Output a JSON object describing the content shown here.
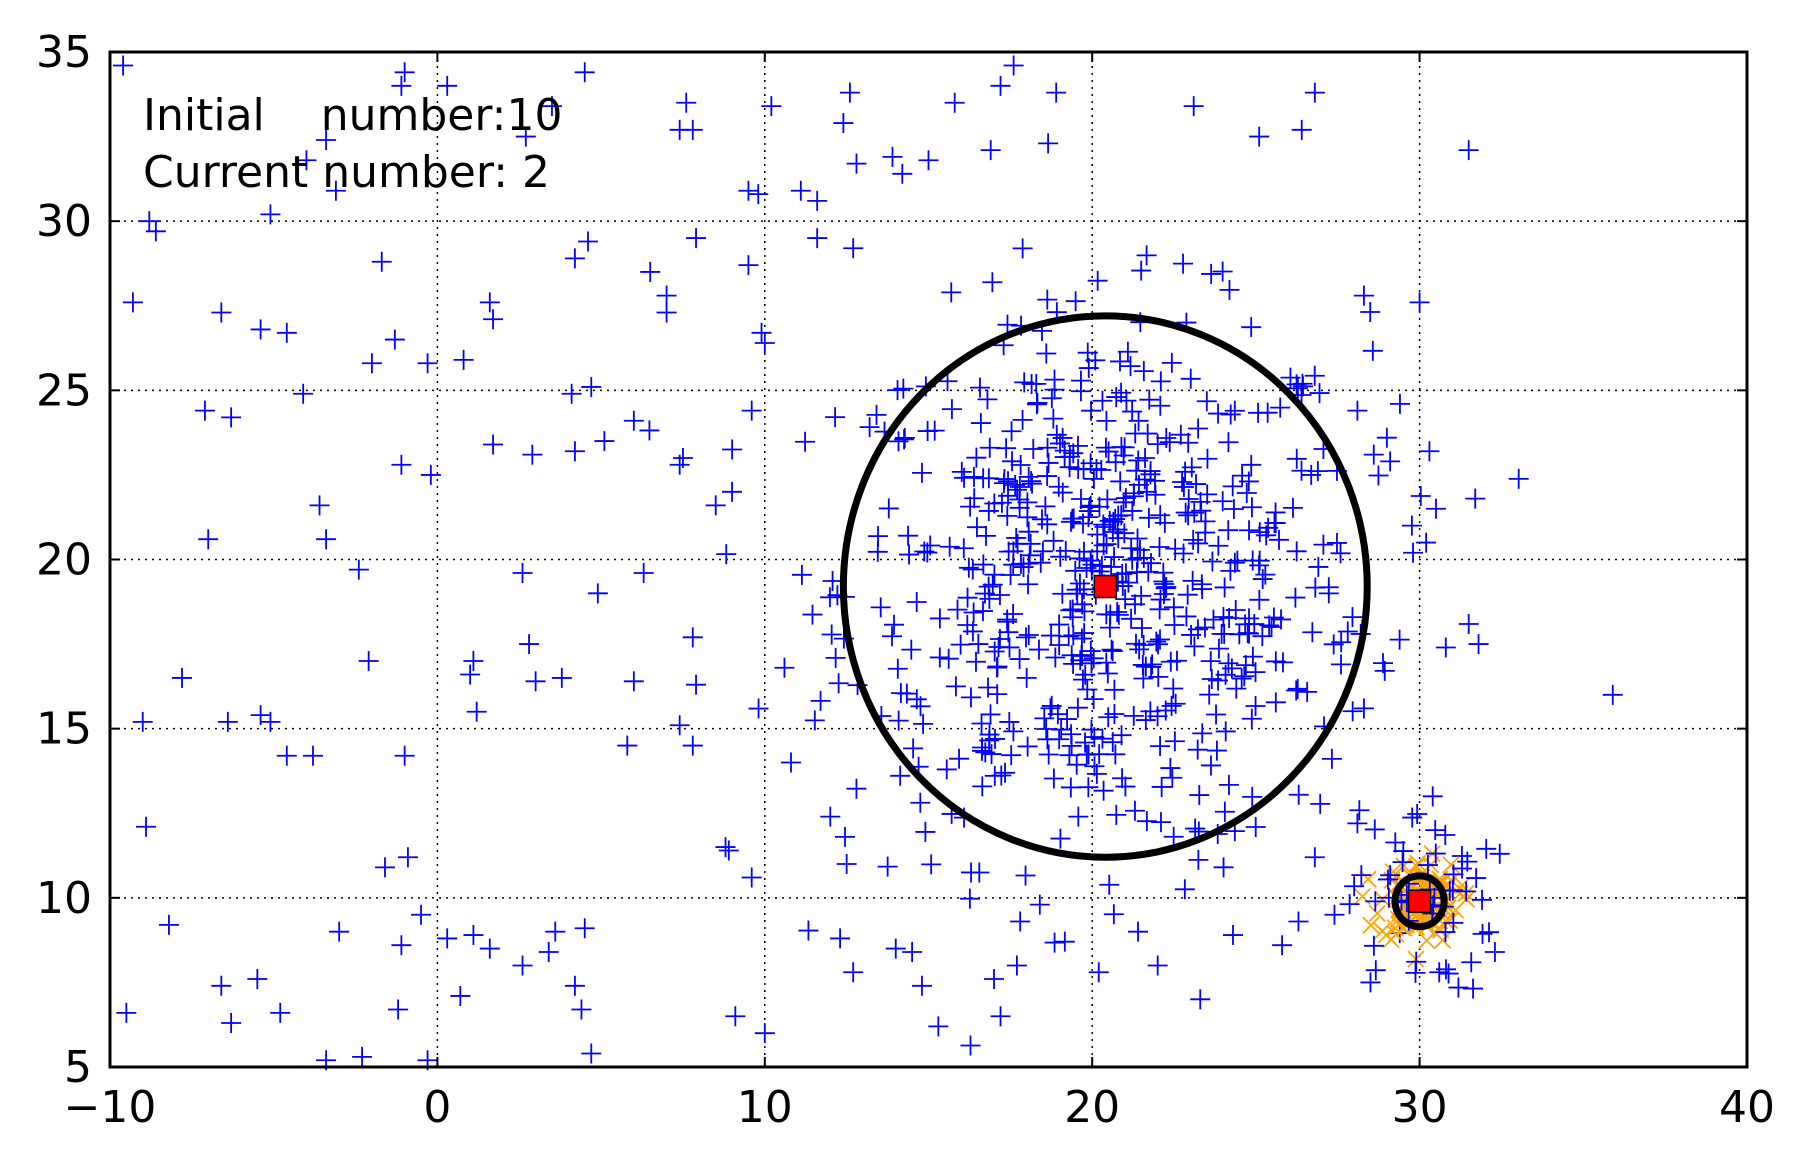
{
  "chart_data": {
    "type": "scatter",
    "title": "",
    "xlabel": "",
    "ylabel": "",
    "xlim": [
      -10,
      40
    ],
    "ylim": [
      5,
      35
    ],
    "x_ticks": [
      -10,
      0,
      10,
      20,
      30,
      40
    ],
    "y_ticks": [
      5,
      10,
      15,
      20,
      25,
      30,
      35
    ],
    "x_tick_labels": [
      "−10",
      "0",
      "10",
      "20",
      "30",
      "40"
    ],
    "y_tick_labels": [
      "5",
      "10",
      "15",
      "20",
      "25",
      "30",
      "35"
    ],
    "grid": true,
    "grid_style": "dotted",
    "annotations": {
      "line1": "Initial    number:10",
      "line2": "Current number: 2"
    },
    "colors": {
      "points": "#0000ff",
      "cluster_points": "#ffa500",
      "centers": "#ff0000",
      "circles": "#000000",
      "grid": "#000000"
    },
    "clusters": [
      {
        "center": [
          20.4,
          19.2
        ],
        "radius": 8.0,
        "point_marker": "plus",
        "point_color": "#0000ff",
        "approx_point_count": 650,
        "spread_sd": 4.0
      },
      {
        "center": [
          30.0,
          9.9
        ],
        "radius": 0.75,
        "point_marker": "x",
        "point_color": "#ffa500",
        "approx_point_count": 120,
        "spread_sd": 0.6
      }
    ],
    "background_points": {
      "marker": "plus",
      "color": "#0000ff",
      "sample_points": [
        [
          -9.6,
          34.6
        ],
        [
          -8.8,
          30.0
        ],
        [
          -8.6,
          29.7
        ],
        [
          -9.3,
          27.6
        ],
        [
          -7.8,
          16.5
        ],
        [
          -9.0,
          15.2
        ],
        [
          -8.9,
          12.1
        ],
        [
          -8.2,
          9.2
        ],
        [
          -9.5,
          6.6
        ],
        [
          -6.6,
          7.4
        ],
        [
          -6.3,
          6.3
        ],
        [
          -5.5,
          7.6
        ],
        [
          -4.8,
          6.6
        ],
        [
          -6.4,
          15.2
        ],
        [
          -5.4,
          15.4
        ],
        [
          -5.1,
          15.2
        ],
        [
          -4.6,
          14.2
        ],
        [
          -3.8,
          14.2
        ],
        [
          -3.6,
          21.6
        ],
        [
          -3.4,
          20.6
        ],
        [
          -2.4,
          19.7
        ],
        [
          -2.1,
          17.0
        ],
        [
          -1.6,
          10.9
        ],
        [
          -0.9,
          11.2
        ],
        [
          -1.1,
          8.6
        ],
        [
          -1.2,
          6.7
        ],
        [
          -0.5,
          9.5
        ],
        [
          -0.3,
          5.2
        ],
        [
          0.3,
          8.8
        ],
        [
          0.7,
          7.1
        ],
        [
          1.1,
          8.9
        ],
        [
          1.6,
          8.5
        ],
        [
          2.6,
          8.0
        ],
        [
          3.4,
          8.4
        ],
        [
          3.6,
          9.0
        ],
        [
          4.2,
          7.4
        ],
        [
          4.4,
          6.7
        ],
        [
          4.7,
          5.4
        ],
        [
          4.5,
          9.1
        ],
        [
          -3.0,
          9.0
        ],
        [
          -2.3,
          5.3
        ],
        [
          -3.4,
          5.2
        ],
        [
          -7.1,
          24.4
        ],
        [
          -6.3,
          24.2
        ],
        [
          -5.4,
          26.8
        ],
        [
          -4.6,
          26.7
        ],
        [
          -6.6,
          27.3
        ],
        [
          -4.1,
          24.9
        ],
        [
          -2.0,
          25.8
        ],
        [
          -1.3,
          26.5
        ],
        [
          -0.3,
          25.8
        ],
        [
          0.8,
          25.9
        ],
        [
          1.6,
          27.6
        ],
        [
          1.7,
          27.1
        ],
        [
          -0.2,
          22.5
        ],
        [
          -1.1,
          22.8
        ],
        [
          1.7,
          23.4
        ],
        [
          2.9,
          23.1
        ],
        [
          4.2,
          23.2
        ],
        [
          5.1,
          23.5
        ],
        [
          4.1,
          24.9
        ],
        [
          4.7,
          25.1
        ],
        [
          6.0,
          24.1
        ],
        [
          -5.1,
          30.2
        ],
        [
          -4.0,
          31.8
        ],
        [
          -3.4,
          32.4
        ],
        [
          -3.1,
          30.9
        ],
        [
          -1.7,
          28.8
        ],
        [
          -1.1,
          34.0
        ],
        [
          -1.0,
          34.4
        ],
        [
          0.3,
          34.0
        ],
        [
          2.7,
          32.5
        ],
        [
          3.5,
          33.4
        ],
        [
          4.2,
          28.9
        ],
        [
          4.6,
          29.4
        ],
        [
          4.5,
          34.4
        ],
        [
          7.4,
          32.7
        ],
        [
          7.8,
          32.7
        ],
        [
          7.6,
          33.5
        ],
        [
          7.9,
          29.5
        ],
        [
          6.5,
          28.5
        ],
        [
          7.0,
          27.3
        ],
        [
          7.0,
          27.8
        ],
        [
          9.5,
          30.9
        ],
        [
          9.8,
          30.8
        ],
        [
          9.5,
          28.7
        ],
        [
          9.9,
          26.7
        ],
        [
          10.0,
          26.4
        ],
        [
          10.2,
          33.4
        ],
        [
          11.1,
          30.9
        ],
        [
          11.6,
          30.6
        ],
        [
          11.6,
          29.5
        ],
        [
          12.4,
          32.9
        ],
        [
          12.6,
          33.8
        ],
        [
          12.8,
          31.7
        ],
        [
          12.7,
          29.2
        ],
        [
          13.9,
          31.9
        ],
        [
          14.2,
          31.4
        ],
        [
          15.0,
          31.8
        ],
        [
          15.8,
          33.5
        ],
        [
          16.9,
          32.1
        ],
        [
          17.2,
          34.0
        ],
        [
          17.6,
          34.6
        ],
        [
          18.9,
          33.8
        ],
        [
          23.1,
          33.4
        ],
        [
          25.1,
          32.5
        ],
        [
          26.4,
          32.7
        ],
        [
          26.8,
          33.8
        ],
        [
          31.5,
          32.1
        ],
        [
          30.0,
          27.6
        ],
        [
          28.3,
          27.8
        ],
        [
          -7.0,
          20.6
        ],
        [
          -1.0,
          14.2
        ],
        [
          1.0,
          16.6
        ],
        [
          1.1,
          17.0
        ],
        [
          1.2,
          15.5
        ],
        [
          2.8,
          17.5
        ],
        [
          3.0,
          16.4
        ],
        [
          3.8,
          16.5
        ],
        [
          2.6,
          19.6
        ],
        [
          4.9,
          19.0
        ],
        [
          6.3,
          19.6
        ],
        [
          6.0,
          16.4
        ],
        [
          5.8,
          14.5
        ],
        [
          7.9,
          16.3
        ],
        [
          7.8,
          17.7
        ],
        [
          7.8,
          14.5
        ],
        [
          7.4,
          15.1
        ],
        [
          7.4,
          22.8
        ],
        [
          7.5,
          23.0
        ],
        [
          8.5,
          21.6
        ],
        [
          9.0,
          22.0
        ],
        [
          9.6,
          24.4
        ],
        [
          8.8,
          11.5
        ],
        [
          8.9,
          11.4
        ],
        [
          9.6,
          10.6
        ],
        [
          9.1,
          6.5
        ],
        [
          10.0,
          6.0
        ],
        [
          10.6,
          16.8
        ],
        [
          10.8,
          14.0
        ],
        [
          12.0,
          12.4
        ],
        [
          12.3,
          8.8
        ],
        [
          12.7,
          7.8
        ],
        [
          12.5,
          11.0
        ],
        [
          14.0,
          8.5
        ],
        [
          14.5,
          8.4
        ],
        [
          14.8,
          7.4
        ],
        [
          15.3,
          6.2
        ],
        [
          17.0,
          7.6
        ],
        [
          17.2,
          6.5
        ],
        [
          17.7,
          8.0
        ],
        [
          17.8,
          9.3
        ],
        [
          18.4,
          9.8
        ],
        [
          20.2,
          7.8
        ],
        [
          21.4,
          9.0
        ],
        [
          22.0,
          8.0
        ],
        [
          23.3,
          7.0
        ],
        [
          24.3,
          8.9
        ],
        [
          25.8,
          8.6
        ],
        [
          26.3,
          9.3
        ],
        [
          27.4,
          9.5
        ],
        [
          35.9,
          16.0
        ],
        [
          31.8,
          17.5
        ],
        [
          30.8,
          17.4
        ],
        [
          31.7,
          21.8
        ],
        [
          30.5,
          21.5
        ],
        [
          30.2,
          20.5
        ],
        [
          29.8,
          20.2
        ],
        [
          30.3,
          23.2
        ],
        [
          29.0,
          23.6
        ],
        [
          29.4,
          24.6
        ],
        [
          28.1,
          24.4
        ],
        [
          28.6,
          23.1
        ],
        [
          28.2,
          17.8
        ],
        [
          27.6,
          16.9
        ],
        [
          28.1,
          12.2
        ],
        [
          26.8,
          11.2
        ],
        [
          28.3,
          15.6
        ],
        [
          29.1,
          22.9
        ],
        [
          30.4,
          13.0
        ],
        [
          30.6,
          7.8
        ],
        [
          28.5,
          7.5
        ],
        [
          32.3,
          8.4
        ]
      ]
    }
  }
}
